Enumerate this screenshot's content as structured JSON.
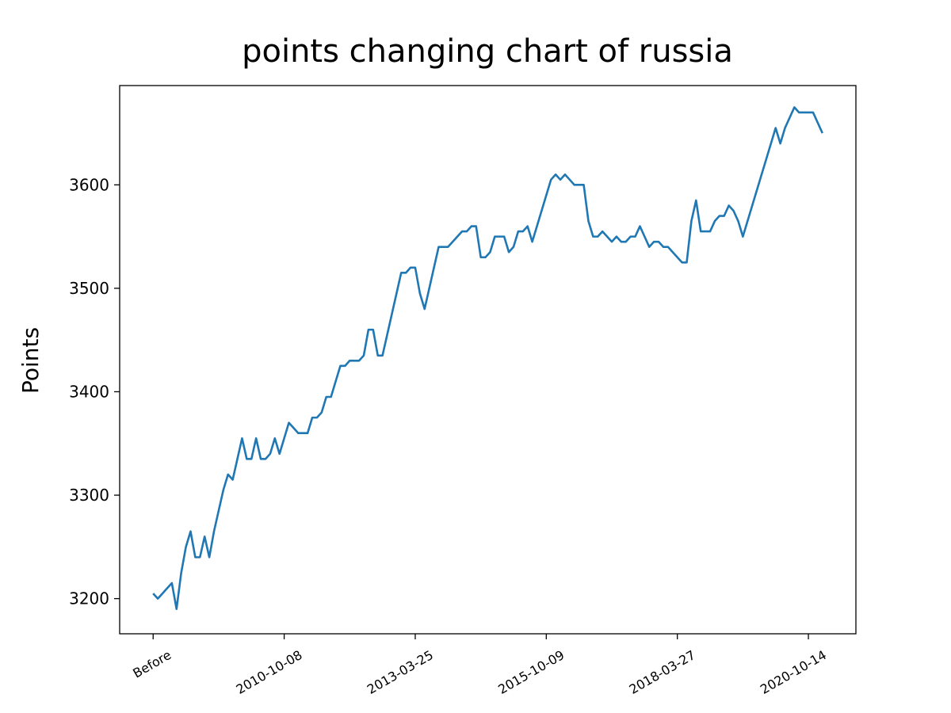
{
  "chart_data": {
    "type": "line",
    "title": "points changing chart of russia",
    "ylabel": "Points",
    "categories": [
      "Before",
      null,
      null,
      null,
      null,
      null,
      null,
      null,
      null,
      null,
      null,
      null,
      null,
      null,
      null,
      null,
      null,
      null,
      null,
      null,
      null,
      null,
      null,
      null,
      null,
      null,
      null,
      null,
      "2010-10-08",
      null,
      null,
      null,
      null,
      null,
      null,
      null,
      null,
      null,
      null,
      null,
      null,
      null,
      null,
      null,
      null,
      null,
      null,
      null,
      null,
      null,
      null,
      null,
      null,
      null,
      null,
      null,
      "2013-03-25",
      null,
      null,
      null,
      null,
      null,
      null,
      null,
      null,
      null,
      null,
      null,
      null,
      null,
      null,
      null,
      null,
      null,
      null,
      null,
      null,
      null,
      null,
      null,
      null,
      null,
      null,
      null,
      "2015-10-09",
      null,
      null,
      null,
      null,
      null,
      null,
      null,
      null,
      null,
      null,
      null,
      null,
      null,
      null,
      null,
      null,
      null,
      null,
      null,
      null,
      null,
      null,
      null,
      null,
      null,
      null,
      null,
      "2018-03-27",
      null,
      null,
      null,
      null,
      null,
      null,
      null,
      null,
      null,
      null,
      null,
      null,
      null,
      null,
      null,
      null,
      null,
      null,
      null,
      null,
      null,
      null,
      null,
      null,
      null,
      null,
      null,
      "2020-10-14",
      null,
      null,
      null
    ],
    "series": [
      {
        "name": "russia",
        "color": "#1f77b4",
        "values": [
          3205,
          3200,
          3205,
          3210,
          3215,
          3190,
          3225,
          3250,
          3265,
          3240,
          3240,
          3260,
          3240,
          3265,
          3285,
          3305,
          3320,
          3315,
          3335,
          3355,
          3335,
          3335,
          3355,
          3335,
          3335,
          3340,
          3355,
          3340,
          3355,
          3370,
          3365,
          3360,
          3360,
          3360,
          3375,
          3375,
          3380,
          3395,
          3395,
          3410,
          3425,
          3425,
          3430,
          3430,
          3430,
          3435,
          3460,
          3460,
          3435,
          3435,
          3455,
          3475,
          3495,
          3515,
          3515,
          3520,
          3520,
          3495,
          3480,
          3500,
          3520,
          3540,
          3540,
          3540,
          3545,
          3550,
          3555,
          3555,
          3560,
          3560,
          3530,
          3530,
          3535,
          3550,
          3550,
          3550,
          3535,
          3540,
          3555,
          3555,
          3560,
          3545,
          3560,
          3575,
          3590,
          3605,
          3610,
          3605,
          3610,
          3605,
          3600,
          3600,
          3600,
          3565,
          3550,
          3550,
          3555,
          3550,
          3545,
          3550,
          3545,
          3545,
          3550,
          3550,
          3560,
          3550,
          3540,
          3545,
          3545,
          3540,
          3540,
          3535,
          3530,
          3525,
          3525,
          3565,
          3585,
          3555,
          3555,
          3555,
          3565,
          3570,
          3570,
          3580,
          3575,
          3565,
          3550,
          3565,
          3580,
          3595,
          3610,
          3625,
          3640,
          3655,
          3640,
          3655,
          3665,
          3675,
          3670,
          3670,
          3670,
          3670,
          3660,
          3650
        ]
      }
    ],
    "ylim": [
      3166,
      3696
    ],
    "yticks": [
      3200,
      3300,
      3400,
      3500,
      3600
    ]
  }
}
